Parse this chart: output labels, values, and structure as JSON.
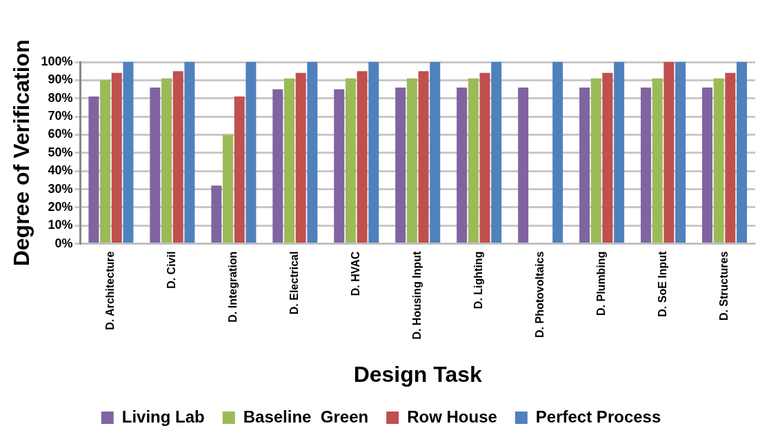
{
  "chart_data": {
    "type": "bar",
    "xlabel": "Design Task",
    "ylabel": "Degree of Verification",
    "categories": [
      "D. Architecture",
      "D. Civil",
      "D. Integration",
      "D. Electrical",
      "D. HVAC",
      "D. Housing Input",
      "D. Lighting",
      "D. Photovoltaics",
      "D. Plumbing",
      "D. SoE Input",
      "D. Structures"
    ],
    "series": [
      {
        "name": "Living Lab",
        "color": "#8064a2",
        "values": [
          81,
          86,
          32,
          85,
          85,
          86,
          86,
          86,
          86,
          86,
          86
        ]
      },
      {
        "name": "Baseline  Green",
        "color": "#9bbb59",
        "values": [
          90,
          91,
          60,
          91,
          91,
          91,
          91,
          null,
          91,
          91,
          91
        ]
      },
      {
        "name": "Row House",
        "color": "#c0504d",
        "values": [
          94,
          95,
          81,
          94,
          95,
          95,
          94,
          null,
          94,
          100,
          94
        ]
      },
      {
        "name": "Perfect Process",
        "color": "#4f81bd",
        "values": [
          100,
          100,
          100,
          100,
          100,
          100,
          100,
          100,
          100,
          100,
          100
        ]
      }
    ],
    "ylim": [
      0,
      100
    ],
    "yticks": [
      {
        "value": 0,
        "label": "0%"
      },
      {
        "value": 10,
        "label": "10%"
      },
      {
        "value": 20,
        "label": "20%"
      },
      {
        "value": 30,
        "label": "30%"
      },
      {
        "value": 40,
        "label": "40%"
      },
      {
        "value": 50,
        "label": "50%"
      },
      {
        "value": 60,
        "label": "60%"
      },
      {
        "value": 70,
        "label": "70%"
      },
      {
        "value": 80,
        "label": "80%"
      },
      {
        "value": 90,
        "label": "90%"
      },
      {
        "value": 100,
        "label": "100%"
      }
    ],
    "grid": "y",
    "legend": "bottom"
  }
}
